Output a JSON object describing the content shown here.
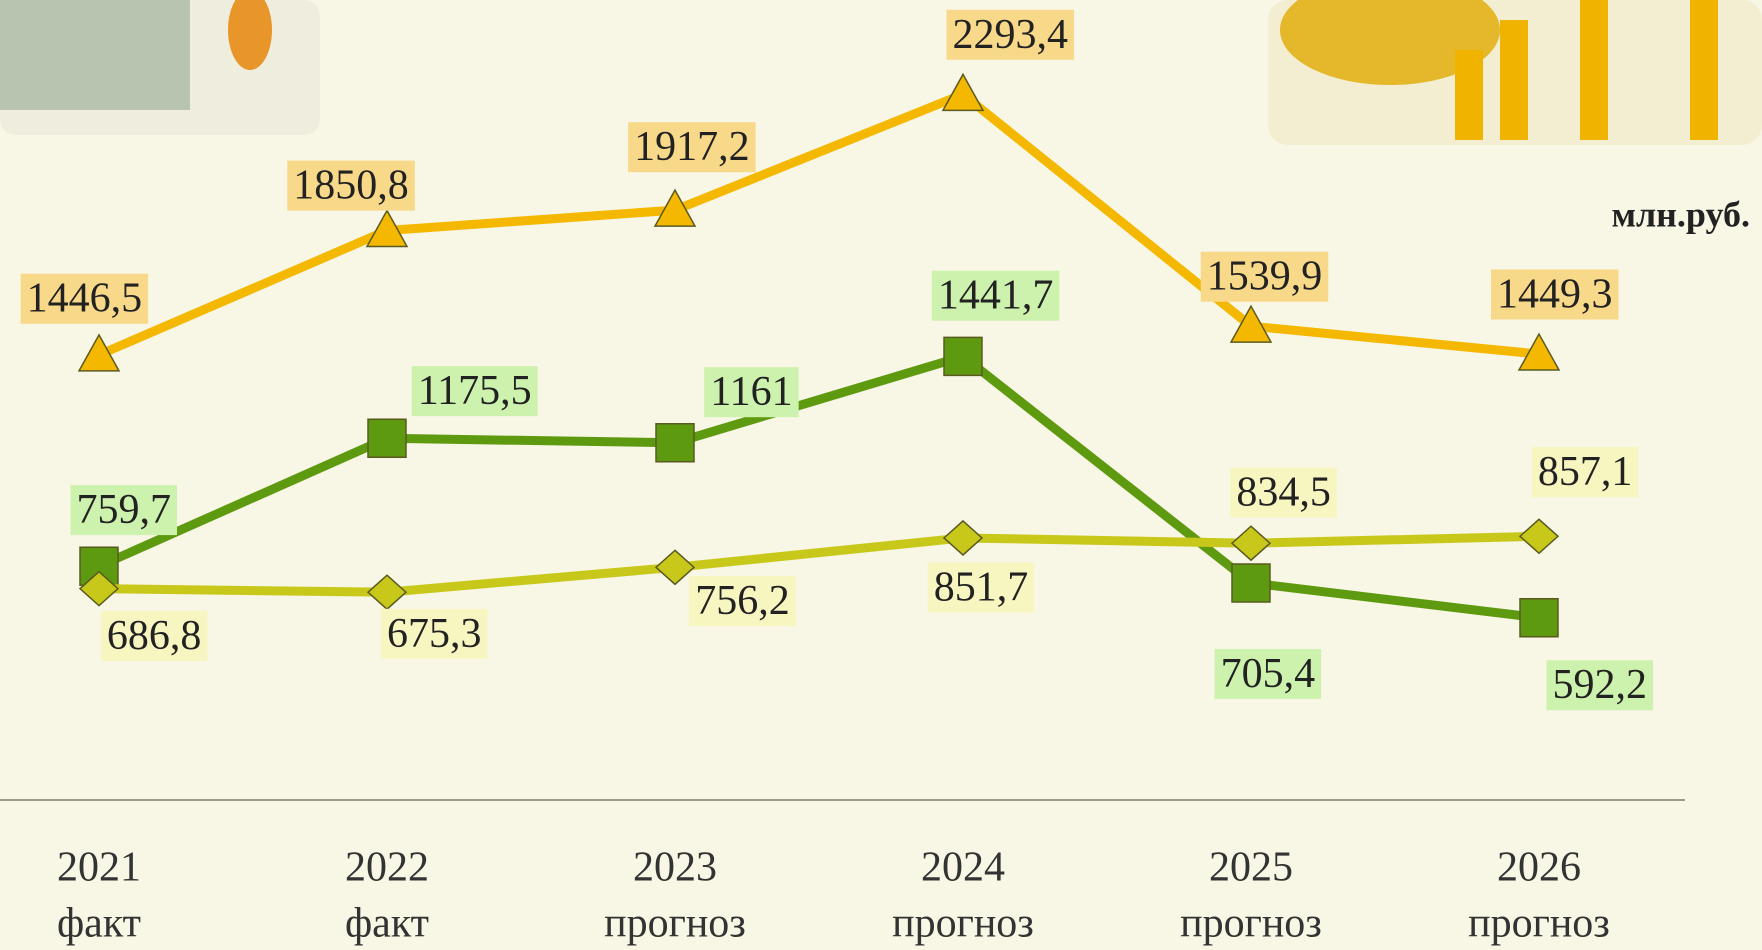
{
  "chart_data": {
    "type": "line",
    "unit": "млн.руб.",
    "categories": [
      [
        "2021",
        "факт"
      ],
      [
        "2022",
        "факт"
      ],
      [
        "2023",
        "прогноз"
      ],
      [
        "2024",
        "прогноз"
      ],
      [
        "2025",
        "прогноз"
      ],
      [
        "2026",
        "прогноз"
      ]
    ],
    "ylim": [
      0,
      2600
    ],
    "series": [
      {
        "color": "#f5b800",
        "marker": "triangle",
        "label_bg": "#f8d98a",
        "values": [
          1446.5,
          1850.8,
          1917.2,
          2293.4,
          1539.9,
          1449.3
        ],
        "value_labels": [
          "1446,5",
          "1850,8",
          "1917,2",
          "2293,4",
          "1539,9",
          "1449,3"
        ]
      },
      {
        "color": "#5e9a10",
        "marker": "square",
        "label_bg": "#cdf2ae",
        "values": [
          759.7,
          1175.5,
          1161,
          1441.7,
          705.4,
          592.2
        ],
        "value_labels": [
          "759,7",
          "1175,5",
          "1161",
          "1441,7",
          "705,4",
          "592,2"
        ]
      },
      {
        "color": "#c8c81a",
        "marker": "diamond",
        "label_bg": "#f7f5c0",
        "values": [
          686.8,
          675.3,
          756.2,
          851.7,
          834.5,
          857.1
        ],
        "value_labels": [
          "686,8",
          "675,3",
          "756,2",
          "851,7",
          "834,5",
          "857,1"
        ]
      }
    ]
  }
}
